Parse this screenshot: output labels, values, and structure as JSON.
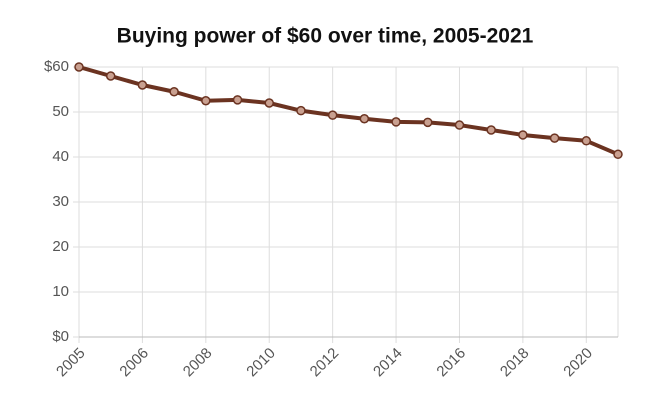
{
  "chart_data": {
    "type": "line",
    "title": "Buying power of $60 over time, 2005-2021",
    "categories": [
      "2005",
      null,
      "2006",
      null,
      "2008",
      null,
      "2010",
      null,
      "2012",
      null,
      "2014",
      null,
      "2016",
      null,
      "2018",
      null,
      "2020",
      null
    ],
    "series": [
      {
        "name": "Buying power",
        "color": "#6b3321",
        "values": [
          60,
          58,
          56,
          54.5,
          52.5,
          52.7,
          52,
          50.3,
          49.3,
          48.5,
          47.8,
          47.7,
          47.1,
          46,
          44.9,
          44.2,
          43.6,
          40.6
        ]
      }
    ],
    "ylim": [
      0,
      60
    ],
    "yticks": [
      {
        "value": 0,
        "label": "$0"
      },
      10,
      20,
      30,
      40,
      50,
      {
        "value": 60,
        "label": "$60"
      }
    ],
    "grid": true
  }
}
